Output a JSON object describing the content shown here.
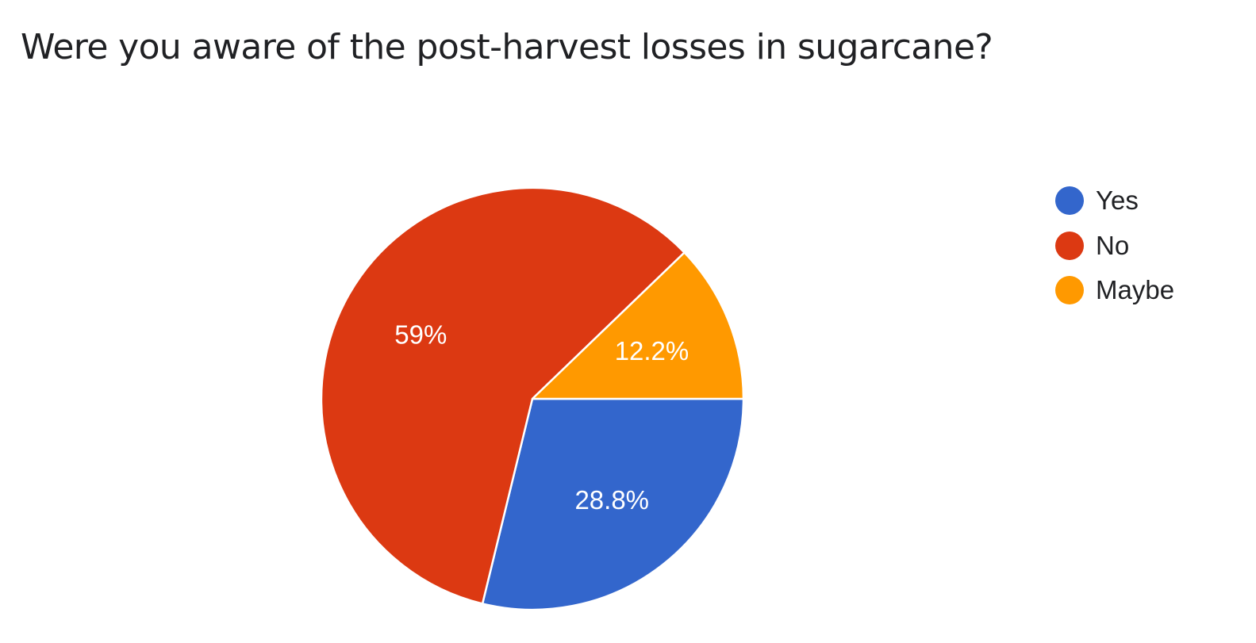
{
  "chart_data": {
    "type": "pie",
    "title": "Were you aware of the post-harvest losses in sugarcane?",
    "categories": [
      "Yes",
      "No",
      "Maybe"
    ],
    "values": [
      28.8,
      59,
      12.2
    ],
    "labels": [
      "28.8%",
      "59%",
      "12.2%"
    ],
    "colors": [
      "#3366cc",
      "#dc3912",
      "#ff9900"
    ],
    "start": "3 o'clock",
    "direction": "clockwise",
    "legend_position": "right"
  }
}
